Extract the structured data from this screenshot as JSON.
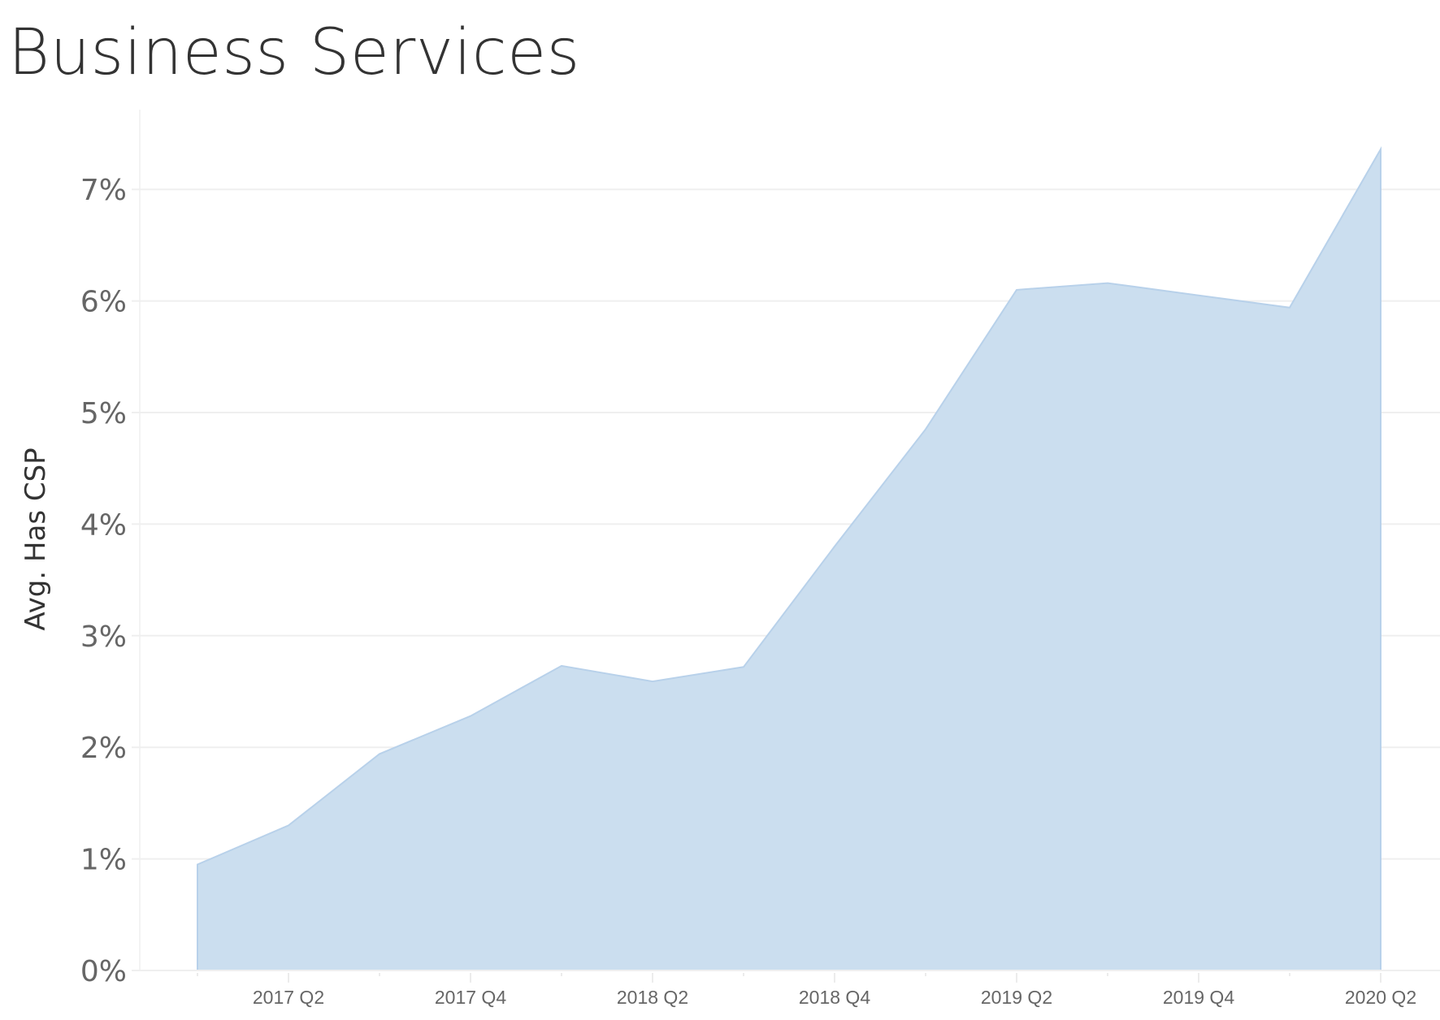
{
  "title": "Business Services",
  "colors": {
    "area_fill": "#cbdeef",
    "area_stroke": "#b8d1ea",
    "gridline": "#efefef",
    "axis_text": "#666666",
    "title_text": "#333333"
  },
  "chart_data": {
    "type": "area",
    "title": "Business Services",
    "xlabel": "",
    "ylabel": "Avg. Has CSP",
    "x": [
      "2017 Q1",
      "2017 Q2",
      "2017 Q3",
      "2017 Q4",
      "2018 Q1",
      "2018 Q2",
      "2018 Q3",
      "2018 Q4",
      "2019 Q1",
      "2019 Q2",
      "2019 Q3",
      "2019 Q4",
      "2020 Q1",
      "2020 Q2"
    ],
    "series": [
      {
        "name": "Avg. Has CSP",
        "values": [
          0.95,
          1.3,
          1.94,
          2.28,
          2.73,
          2.59,
          2.72,
          3.8,
          4.85,
          6.1,
          6.16,
          6.05,
          5.94,
          7.36
        ],
        "unit": "%"
      }
    ],
    "ylim": [
      0,
      7.5
    ],
    "yticks": [
      "0%",
      "1%",
      "2%",
      "3%",
      "4%",
      "5%",
      "6%",
      "7%"
    ],
    "xtick_labels": [
      "2017 Q2",
      "2017 Q4",
      "2018 Q2",
      "2018 Q4",
      "2019 Q2",
      "2019 Q4",
      "2020 Q2"
    ],
    "grid": "horizontal",
    "legend": "none"
  }
}
